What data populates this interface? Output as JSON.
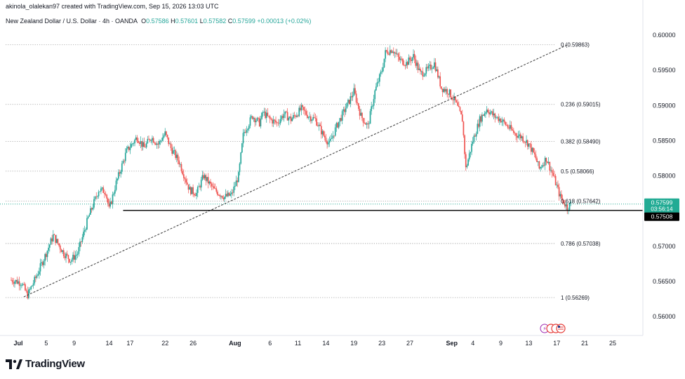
{
  "header": {
    "credit": "akinola_olalekan97 created with TradingView.com, Sep 15, 2026 13:03 UTC",
    "symbol": "New Zealand Dollar / U.S. Dollar · 4h · OANDA",
    "o_label": "O",
    "o_value": "0.57586",
    "h_label": "H",
    "h_value": "0.57601",
    "l_label": "L",
    "l_value": "0.57582",
    "c_label": "C",
    "c_value": "0.57599",
    "change": "+0.00013 (+0.02%)"
  },
  "footer": {
    "brand": "TradingView"
  },
  "colors": {
    "up": "#26a69a",
    "down": "#ef5350",
    "price_tag": "#22ab94",
    "support_tag": "#000000",
    "grid": "#9a9a9a"
  },
  "chart_data": {
    "type": "candlestick",
    "y_axis": {
      "min": 0.5555,
      "max": 0.6015,
      "ticks": [
        0.6,
        0.595,
        0.59,
        0.585,
        0.58,
        0.575,
        0.57,
        0.565,
        0.56
      ],
      "tick_labels": [
        "0.60000",
        "0.59500",
        "0.59000",
        "0.58500",
        "0.58000",
        "0.57500",
        "0.57000",
        "0.56500",
        "0.56000"
      ]
    },
    "x_axis": {
      "first_day": "Jul 1",
      "last_day": "Sep 28",
      "ticks": [
        {
          "day": 1,
          "label": "Jul",
          "bold": true
        },
        {
          "day": 5,
          "label": "5"
        },
        {
          "day": 9,
          "label": "9"
        },
        {
          "day": 14,
          "label": "14"
        },
        {
          "day": 17,
          "label": "17"
        },
        {
          "day": 22,
          "label": "22"
        },
        {
          "day": 26,
          "label": "26"
        },
        {
          "day": 32,
          "label": "Aug",
          "bold": true
        },
        {
          "day": 37,
          "label": "6"
        },
        {
          "day": 41,
          "label": "11"
        },
        {
          "day": 45,
          "label": "14"
        },
        {
          "day": 49,
          "label": "19"
        },
        {
          "day": 53,
          "label": "23"
        },
        {
          "day": 57,
          "label": "27"
        },
        {
          "day": 63,
          "label": "Sep",
          "bold": true
        },
        {
          "day": 66,
          "label": "4"
        },
        {
          "day": 70,
          "label": "9"
        },
        {
          "day": 74,
          "label": "13"
        },
        {
          "day": 78,
          "label": "17"
        },
        {
          "day": 82,
          "label": "21"
        },
        {
          "day": 86,
          "label": "25"
        }
      ]
    },
    "fibonacci": [
      {
        "ratio": "0",
        "price": 0.59863,
        "label": "0 (0.59863)"
      },
      {
        "ratio": "0.236",
        "price": 0.59015,
        "label": "0.236 (0.59015)"
      },
      {
        "ratio": "0.382",
        "price": 0.5849,
        "label": "0.382 (0.58490)"
      },
      {
        "ratio": "0.5",
        "price": 0.58066,
        "label": "0.5 (0.58066)"
      },
      {
        "ratio": "0.618",
        "price": 0.57642,
        "label": "0.618 (0.57642)"
      },
      {
        "ratio": "0.786",
        "price": 0.57038,
        "label": "0.786 (0.57038)"
      },
      {
        "ratio": "1",
        "price": 0.56269,
        "label": "1 (0.56269)"
      }
    ],
    "trendline": {
      "start": {
        "day": 1.8,
        "price": 0.5628
      },
      "end": {
        "day": 79.5,
        "price": 0.5986
      }
    },
    "support_line": {
      "price": 0.57508,
      "label": "0.57508",
      "from_day": 16
    },
    "last_price": {
      "price": 0.57599,
      "label": "0.57599",
      "countdown": "03:56:14"
    },
    "path_points": [
      [
        0.0,
        0.5652
      ],
      [
        1.5,
        0.5648
      ],
      [
        2.3,
        0.563
      ],
      [
        3.5,
        0.5655
      ],
      [
        5.0,
        0.569
      ],
      [
        6.0,
        0.5715
      ],
      [
        7.5,
        0.569
      ],
      [
        8.5,
        0.568
      ],
      [
        9.5,
        0.569
      ],
      [
        11.0,
        0.574
      ],
      [
        12.5,
        0.578
      ],
      [
        13.5,
        0.5778
      ],
      [
        14.0,
        0.5752
      ],
      [
        15.0,
        0.579
      ],
      [
        16.5,
        0.5835
      ],
      [
        18.0,
        0.5855
      ],
      [
        19.0,
        0.584
      ],
      [
        20.0,
        0.5855
      ],
      [
        21.0,
        0.5845
      ],
      [
        22.0,
        0.586
      ],
      [
        22.8,
        0.584
      ],
      [
        24.0,
        0.582
      ],
      [
        25.5,
        0.578
      ],
      [
        26.5,
        0.5775
      ],
      [
        27.5,
        0.58
      ],
      [
        29.0,
        0.578
      ],
      [
        30.5,
        0.577
      ],
      [
        31.5,
        0.5773
      ],
      [
        32.5,
        0.58
      ],
      [
        33.2,
        0.586
      ],
      [
        34.5,
        0.5885
      ],
      [
        35.5,
        0.5875
      ],
      [
        36.0,
        0.589
      ],
      [
        37.0,
        0.588
      ],
      [
        38.0,
        0.5875
      ],
      [
        39.0,
        0.5888
      ],
      [
        40.0,
        0.588
      ],
      [
        41.5,
        0.5895
      ],
      [
        42.5,
        0.5885
      ],
      [
        43.5,
        0.588
      ],
      [
        44.5,
        0.586
      ],
      [
        45.5,
        0.5845
      ],
      [
        46.5,
        0.587
      ],
      [
        48.0,
        0.59
      ],
      [
        49.0,
        0.592
      ],
      [
        50.0,
        0.5885
      ],
      [
        51.0,
        0.587
      ],
      [
        52.0,
        0.592
      ],
      [
        53.0,
        0.595
      ],
      [
        53.5,
        0.5975
      ],
      [
        54.5,
        0.598
      ],
      [
        55.5,
        0.5965
      ],
      [
        56.5,
        0.596
      ],
      [
        57.5,
        0.597
      ],
      [
        58.5,
        0.5945
      ],
      [
        59.5,
        0.595
      ],
      [
        60.5,
        0.596
      ],
      [
        61.5,
        0.5925
      ],
      [
        62.5,
        0.592
      ],
      [
        63.5,
        0.5905
      ],
      [
        64.5,
        0.588
      ],
      [
        65.0,
        0.581
      ],
      [
        66.0,
        0.585
      ],
      [
        67.0,
        0.588
      ],
      [
        68.0,
        0.5895
      ],
      [
        69.0,
        0.5885
      ],
      [
        70.0,
        0.588
      ],
      [
        71.0,
        0.587
      ],
      [
        72.0,
        0.586
      ],
      [
        73.0,
        0.5855
      ],
      [
        74.0,
        0.5845
      ],
      [
        75.0,
        0.5825
      ],
      [
        75.5,
        0.581
      ],
      [
        76.5,
        0.5825
      ],
      [
        77.5,
        0.58
      ],
      [
        78.5,
        0.577
      ],
      [
        79.5,
        0.5755
      ],
      [
        80.0,
        0.576
      ]
    ]
  }
}
